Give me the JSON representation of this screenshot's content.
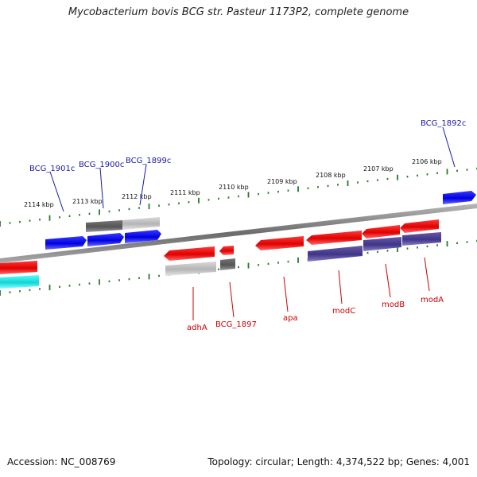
{
  "title": "Mycobacterium bovis BCG str. Pasteur 1173P2, complete genome",
  "footer": {
    "accession": "Accession: NC_008769",
    "summary": "Topology: circular; Length: 4,374,522 bp; Genes: 4,001"
  },
  "ruler_ticks": [
    {
      "label": "2114 kbp"
    },
    {
      "label": "2113 kbp"
    },
    {
      "label": "2112 kbp"
    },
    {
      "label": "2111 kbp"
    },
    {
      "label": "2110 kbp"
    },
    {
      "label": "2109 kbp"
    },
    {
      "label": "2108 kbp"
    },
    {
      "label": "2107 kbp"
    },
    {
      "label": "2106 kbp"
    }
  ],
  "gene_labels": {
    "top": [
      {
        "label": "BCG_1901c"
      },
      {
        "label": "BCG_1900c"
      },
      {
        "label": "BCG_1899c"
      },
      {
        "label": "BCG_1892c"
      }
    ],
    "bottom": [
      {
        "label": "adhA"
      },
      {
        "label": "BCG_1897"
      },
      {
        "label": "apa"
      },
      {
        "label": "modC"
      },
      {
        "label": "modB"
      },
      {
        "label": "modA"
      }
    ]
  },
  "colors": {
    "forward_gene": "#ee0000",
    "reverse_gene": "#0000ee",
    "operon_bar": "#4a3f8f",
    "pseudo_gene": "#777777",
    "rna_gene": "#22dddd",
    "ruler_tick": "#2a7a2a",
    "backbone": "#888888",
    "top_label": "#1a1aa6",
    "bottom_label": "#cc0000"
  }
}
